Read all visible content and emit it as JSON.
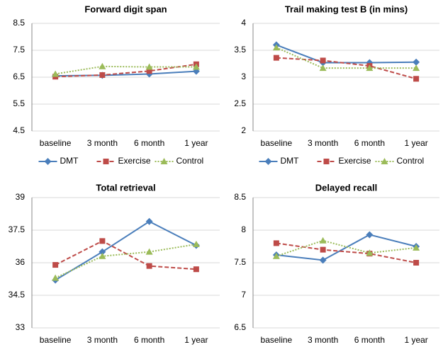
{
  "chart_data": [
    {
      "type": "line",
      "title": "Forward digit span",
      "categories": [
        "baseline",
        "3 month",
        "6 month",
        "1 year"
      ],
      "series": [
        {
          "name": "DMT",
          "color": "#4a7ebb",
          "marker": "diamond",
          "dash": "solid",
          "values": [
            6.55,
            6.57,
            6.62,
            6.72
          ]
        },
        {
          "name": "Exercise",
          "color": "#be4b48",
          "marker": "square",
          "dash": "dashed",
          "values": [
            6.52,
            6.58,
            6.73,
            6.98
          ]
        },
        {
          "name": "Control",
          "color": "#9bbb59",
          "marker": "triangle",
          "dash": "dotted",
          "values": [
            6.62,
            6.9,
            6.88,
            6.88
          ]
        }
      ],
      "ylim": [
        4.5,
        8.5
      ],
      "yticks": [
        4.5,
        5.5,
        6.5,
        7.5,
        8.5
      ],
      "grid": true,
      "legend": "bottom"
    },
    {
      "type": "line",
      "title": "Trail making test B (in mins)",
      "categories": [
        "baseline",
        "3 month",
        "6 month",
        "1 year"
      ],
      "series": [
        {
          "name": "DMT",
          "color": "#4a7ebb",
          "marker": "diamond",
          "dash": "solid",
          "values": [
            3.6,
            3.27,
            3.27,
            3.28
          ]
        },
        {
          "name": "Exercise",
          "color": "#be4b48",
          "marker": "square",
          "dash": "dashed",
          "values": [
            3.36,
            3.31,
            3.21,
            2.97
          ]
        },
        {
          "name": "Control",
          "color": "#9bbb59",
          "marker": "triangle",
          "dash": "dotted",
          "values": [
            3.55,
            3.17,
            3.17,
            3.17
          ]
        }
      ],
      "ylim": [
        2,
        4
      ],
      "yticks": [
        2,
        2.5,
        3,
        3.5,
        4
      ],
      "grid": true,
      "legend": "bottom"
    },
    {
      "type": "line",
      "title": "Total retrieval",
      "categories": [
        "baseline",
        "3 month",
        "6 month",
        "1 year"
      ],
      "series": [
        {
          "color": "#4a7ebb",
          "marker": "diamond",
          "dash": "solid",
          "values": [
            35.2,
            36.5,
            37.9,
            36.8
          ]
        },
        {
          "color": "#be4b48",
          "marker": "square",
          "dash": "dashed",
          "values": [
            35.9,
            37.0,
            35.85,
            35.7
          ]
        },
        {
          "color": "#9bbb59",
          "marker": "triangle",
          "dash": "dotted",
          "values": [
            35.3,
            36.3,
            36.5,
            36.85
          ]
        }
      ],
      "ylim": [
        33,
        39
      ],
      "yticks": [
        33,
        34.5,
        36,
        37.5,
        39
      ],
      "grid": true
    },
    {
      "type": "line",
      "title": "Delayed recall",
      "categories": [
        "baseline",
        "3 month",
        "6 month",
        "1 year"
      ],
      "series": [
        {
          "color": "#4a7ebb",
          "marker": "diamond",
          "dash": "solid",
          "values": [
            7.62,
            7.54,
            7.93,
            7.75
          ]
        },
        {
          "color": "#be4b48",
          "marker": "square",
          "dash": "dashed",
          "values": [
            7.8,
            7.7,
            7.64,
            7.5
          ]
        },
        {
          "color": "#9bbb59",
          "marker": "triangle",
          "dash": "dotted",
          "values": [
            7.6,
            7.84,
            7.65,
            7.73
          ]
        }
      ],
      "ylim": [
        6.5,
        8.5
      ],
      "yticks": [
        6.5,
        7,
        7.5,
        8,
        8.5
      ],
      "grid": true
    }
  ]
}
